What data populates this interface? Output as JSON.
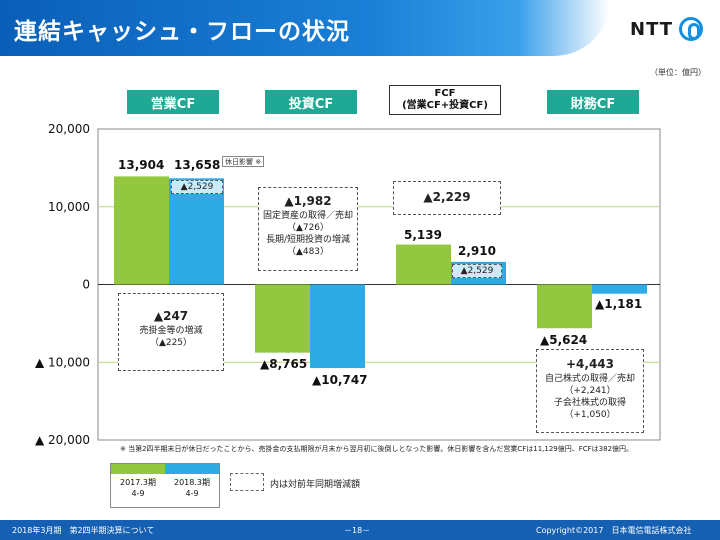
{
  "slide": {
    "title": "連結キャッシュ・フローの状況",
    "logo_text": "NTT",
    "unit": "（単位：億円）"
  },
  "categories": {
    "operating": "営業CF",
    "investing": "投資CF",
    "fcf_line1": "FCF",
    "fcf_line2": "(営業CF+投資CF)",
    "financing": "財務CF"
  },
  "axis": {
    "ticks": [
      "20,000",
      "10,000",
      "0",
      "▲ 10,000",
      "▲ 20,000"
    ]
  },
  "chart_data": {
    "type": "bar",
    "categories": [
      "営業CF",
      "投資CF",
      "FCF",
      "財務CF"
    ],
    "series": [
      {
        "name": "2017.3期 4-9",
        "values": [
          13904,
          -8765,
          5139,
          -5624
        ],
        "color": "#93c83e"
      },
      {
        "name": "2018.3期 4-9",
        "values": [
          13658,
          -10747,
          2910,
          -1181
        ],
        "color": "#2eaae4"
      }
    ],
    "ylim": [
      -20000,
      20000
    ],
    "value_labels": [
      [
        "13,904",
        "13,658"
      ],
      [
        "▲8,765",
        "▲10,747"
      ],
      [
        "5,139",
        "2,910"
      ],
      [
        "▲5,624",
        "▲1,181"
      ]
    ]
  },
  "annotations": {
    "operating_box": {
      "big": "▲247",
      "line1": "売掛金等の増減",
      "line2": "（▲225）"
    },
    "operating_inset": "▲2,529",
    "holiday_tag": "休日影響 ※",
    "investing_box": {
      "big": "▲1,982",
      "line1": "固定資産の取得／売却",
      "line2": "（▲726）",
      "line3": "長期/短期投資の増減",
      "line4": "（▲483）"
    },
    "fcf_box": {
      "big": "▲2,229"
    },
    "fcf_inset": "▲2,529",
    "financing_box": {
      "big": "+4,443",
      "line1": "自己株式の取得／売却",
      "line2": "（+2,241）",
      "line3": "子会社株式の取得",
      "line4": "（+1,050）"
    }
  },
  "note": "※ 当第2四半期末日が休日だったことから、売掛金の支払期限が月末から翌月初に後倒しとなった影響。休日影響を含んだ営業CFは11,129億円、FCFは382億円。",
  "legend": {
    "left_label": "2017.3期",
    "left_sub": "4-9",
    "right_label": "2018.3期",
    "right_sub": "4-9",
    "left_color": "#93c83e",
    "right_color": "#2eaae4",
    "dash_label": "内は対前年同期増減額"
  },
  "footer": {
    "left": "2018年3月期　第2四半期決算について",
    "center": "－18－",
    "right": "Copyright©2017　日本電信電話株式会社"
  }
}
